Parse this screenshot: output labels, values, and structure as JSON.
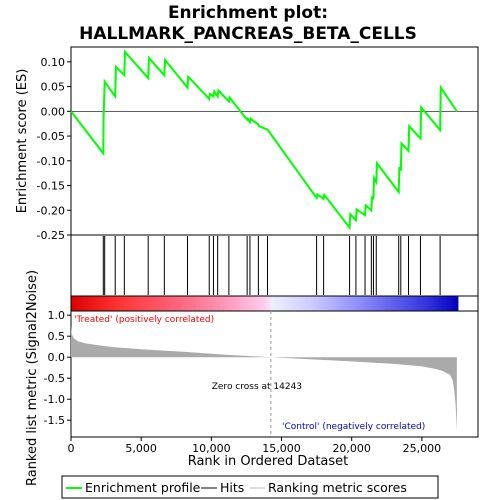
{
  "chart_data": {
    "type": "line",
    "title_line1": "Enrichment plot:",
    "title_line2": "HALLMARK_PANCREAS_BETA_CELLS",
    "es_panel": {
      "ylabel": "Enrichment score (ES)",
      "ylim": [
        -0.25,
        0.13
      ],
      "yticks": [
        0.1,
        0.05,
        0.0,
        -0.05,
        -0.1,
        -0.15,
        -0.2,
        -0.25
      ],
      "ytick_labels": [
        "0.10",
        "0.05",
        "0.00",
        "-0.05",
        "-0.10",
        "-0.15",
        "-0.20",
        "-0.25"
      ],
      "line_color": "#00ff00",
      "x": [
        0,
        2300,
        2320,
        2400,
        3150,
        3200,
        3800,
        3850,
        5500,
        5550,
        6650,
        6700,
        8300,
        8350,
        9850,
        9900,
        10150,
        10200,
        10450,
        10500,
        11250,
        11300,
        12550,
        12600,
        12750,
        12800,
        13350,
        13400,
        14000,
        17500,
        17550,
        18000,
        18050,
        19850,
        19900,
        20300,
        20350,
        20950,
        21000,
        21400,
        21450,
        21550,
        21600,
        21750,
        21800,
        23350,
        23400,
        23500,
        23550,
        24050,
        24100,
        24900,
        24950,
        26300,
        26350,
        27500
      ],
      "y": [
        0.0,
        -0.085,
        -0.01,
        0.06,
        0.03,
        0.09,
        0.073,
        0.12,
        0.067,
        0.108,
        0.073,
        0.104,
        0.048,
        0.07,
        0.025,
        0.035,
        0.03,
        0.04,
        0.03,
        0.042,
        0.02,
        0.028,
        -0.017,
        -0.015,
        -0.022,
        -0.015,
        -0.027,
        -0.03,
        -0.037,
        -0.175,
        -0.168,
        -0.177,
        -0.169,
        -0.235,
        -0.208,
        -0.22,
        -0.198,
        -0.21,
        -0.19,
        -0.2,
        -0.172,
        -0.178,
        -0.135,
        -0.143,
        -0.105,
        -0.163,
        -0.113,
        -0.12,
        -0.065,
        -0.08,
        -0.03,
        -0.055,
        0.008,
        -0.038,
        0.048,
        0.0
      ]
    },
    "hits": [
      2300,
      2400,
      3150,
      3800,
      5500,
      6650,
      8300,
      9850,
      10150,
      10450,
      11250,
      12550,
      12750,
      13350,
      14000,
      17500,
      18000,
      19850,
      20300,
      20950,
      21400,
      21550,
      21750,
      23350,
      23500,
      24050,
      24900,
      26300
    ],
    "ranking_panel": {
      "ylabel": "Ranked list metric (Signal2Noise)",
      "ylim": [
        -1.9,
        1.1
      ],
      "yticks": [
        1.0,
        0.5,
        0.0,
        -0.5,
        -1.0,
        -1.5
      ],
      "ytick_labels": [
        "1.0",
        "0.5",
        "0.0",
        "-0.5",
        "-1.0",
        "-1.5"
      ],
      "fill_color": "#aaaaaa",
      "x": [
        0,
        50,
        200,
        500,
        1000,
        2000,
        3000,
        5000,
        8000,
        11000,
        14243,
        17000,
        20000,
        23000,
        25000,
        26000,
        26500,
        27000,
        27200,
        27300,
        27400,
        27500
      ],
      "y": [
        0.75,
        0.55,
        0.45,
        0.38,
        0.33,
        0.28,
        0.24,
        0.19,
        0.13,
        0.06,
        0.0,
        -0.05,
        -0.1,
        -0.16,
        -0.22,
        -0.28,
        -0.33,
        -0.42,
        -0.55,
        -0.75,
        -1.1,
        -1.75
      ],
      "zero_cross_label": "Zero cross at 14243",
      "zero_cross": 14243,
      "treated_label": "'Treated' (positively correlated)",
      "control_label": "'Control' (negatively correlated)"
    },
    "xaxis": {
      "label": "Rank in Ordered Dataset",
      "xlim": [
        0,
        29000
      ],
      "xticks": [
        0,
        5000,
        10000,
        15000,
        20000,
        25000
      ],
      "xtick_labels": [
        "0",
        "5,000",
        "10,000",
        "15,000",
        "20,000",
        "25,000"
      ],
      "n_genes": 27600
    },
    "legend": {
      "items": [
        {
          "label": "Enrichment profile",
          "color": "#00ff00"
        },
        {
          "label": "Hits",
          "color": "#000000"
        },
        {
          "label": "Ranking metric scores",
          "color": "#bbbbbb"
        }
      ]
    },
    "colors": {
      "treated_text": "#ff0000",
      "control_text": "#0000cc"
    }
  }
}
